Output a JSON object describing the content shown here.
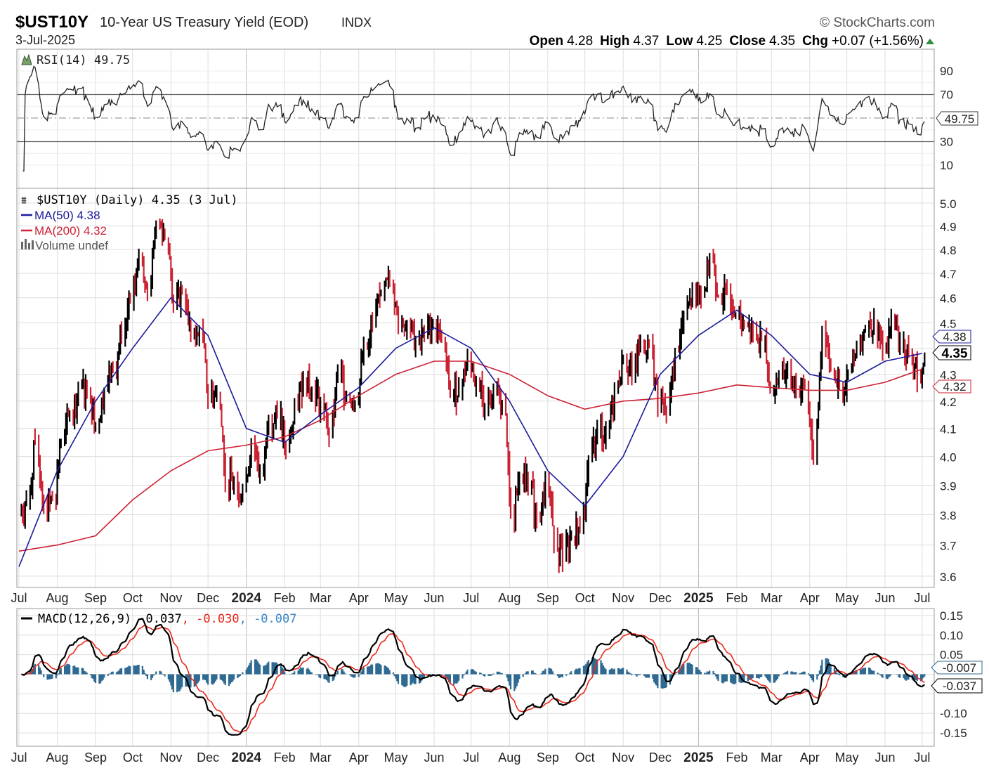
{
  "header": {
    "symbol": "$UST10Y",
    "name": "10-Year US Treasury Yield (EOD)",
    "exchange": "INDX",
    "date": "3-Jul-2025",
    "copyright": "© StockCharts.com",
    "open_label": "Open",
    "open": "4.28",
    "high_label": "High",
    "high": "4.37",
    "low_label": "Low",
    "low": "4.25",
    "close_label": "Close",
    "close": "4.35",
    "chg_label": "Chg",
    "chg": "+0.07 (+1.56%)",
    "up_color": "#2e8b3a"
  },
  "rsi_panel": {
    "legend": "RSI(14) 49.75",
    "value_box": "49.75",
    "ticks": [
      "90",
      "70",
      "30",
      "10"
    ]
  },
  "price_panel": {
    "legend": "$UST10Y (Daily) 4.35 (3 Jul)",
    "ma50_legend": "MA(50) 4.38",
    "ma200_legend": "MA(200) 4.32",
    "volume_legend": "Volume undef",
    "ma50_box": "4.38",
    "close_box": "4.35",
    "ma200_box": "4.32",
    "ticks": [
      "5.0",
      "4.9",
      "4.8",
      "4.7",
      "4.6",
      "4.5",
      "4.3",
      "4.2",
      "4.1",
      "4.0",
      "3.9",
      "3.8",
      "3.7",
      "3.6"
    ]
  },
  "macd_panel": {
    "legend_main": "MACD(12,26,9) -0.037",
    "legend_signal": ", -0.030",
    "legend_hist": ", -0.007",
    "hist_box": "-0.007",
    "macd_box": "-0.037",
    "ticks": [
      "0.15",
      "0.10",
      "0.05",
      "-0.10",
      "-0.15"
    ]
  },
  "x_labels": [
    "Jul",
    "Aug",
    "Sep",
    "Oct",
    "Nov",
    "Dec",
    "2024",
    "Feb",
    "Mar",
    "Apr",
    "May",
    "Jun",
    "Jul",
    "Aug",
    "Sep",
    "Oct",
    "Nov",
    "Dec",
    "2025",
    "Feb",
    "Mar",
    "Apr",
    "May",
    "Jun",
    "Jul"
  ],
  "colors": {
    "up": "#000000",
    "down": "#cc2233",
    "ma50": "#1a1a99",
    "ma200": "#cc2233",
    "macd": "#000000",
    "signal": "#e8291c",
    "hist": "#2f6a92",
    "grid": "#dddddd"
  },
  "chart_data": {
    "type": "line",
    "price_scale": "log",
    "ylim": [
      3.6,
      5.0
    ],
    "rsi_ylim": [
      0,
      100
    ],
    "macd_ylim": [
      -0.15,
      0.15
    ],
    "grid": true,
    "first_week": "2023-07-03",
    "weekly_close": [
      3.85,
      4.05,
      3.82,
      3.85,
      4.05,
      4.15,
      4.25,
      4.25,
      4.12,
      4.25,
      4.32,
      4.45,
      4.58,
      4.78,
      4.62,
      4.92,
      4.85,
      4.57,
      4.63,
      4.44,
      4.47,
      4.22,
      4.23,
      3.92,
      3.9,
      3.88,
      4.05,
      3.95,
      4.13,
      4.14,
      4.03,
      4.18,
      4.28,
      4.25,
      4.19,
      4.08,
      4.31,
      4.22,
      4.2,
      4.4,
      4.5,
      4.62,
      4.67,
      4.5,
      4.5,
      4.42,
      4.47,
      4.5,
      4.43,
      4.22,
      4.25,
      4.36,
      4.28,
      4.19,
      4.24,
      4.2,
      3.79,
      3.94,
      3.89,
      3.8,
      3.9,
      3.72,
      3.65,
      3.73,
      3.75,
      3.98,
      4.1,
      4.08,
      4.24,
      4.37,
      4.3,
      4.43,
      4.41,
      4.18,
      4.15,
      4.4,
      4.52,
      4.62,
      4.6,
      4.77,
      4.61,
      4.62,
      4.54,
      4.49,
      4.47,
      4.43,
      4.23,
      4.31,
      4.31,
      4.25,
      4.25,
      4.0,
      4.48,
      4.32,
      4.24,
      4.31,
      4.38,
      4.48,
      4.51,
      4.4,
      4.51,
      4.42,
      4.38,
      4.28,
      4.35
    ],
    "ma50_monthly": [
      3.63,
      3.95,
      4.2,
      4.4,
      4.6,
      4.45,
      4.1,
      4.05,
      4.15,
      4.25,
      4.4,
      4.48,
      4.4,
      4.2,
      3.95,
      3.83,
      4.0,
      4.3,
      4.45,
      4.55,
      4.45,
      4.3,
      4.27,
      4.35,
      4.38
    ],
    "ma200_monthly": [
      3.68,
      3.7,
      3.73,
      3.85,
      3.95,
      4.02,
      4.04,
      4.07,
      4.13,
      4.22,
      4.3,
      4.35,
      4.35,
      4.3,
      4.22,
      4.17,
      4.2,
      4.21,
      4.23,
      4.26,
      4.25,
      4.24,
      4.24,
      4.27,
      4.32
    ],
    "rsi_last": 49.75,
    "macd_last": -0.037,
    "signal_last": -0.03,
    "hist_last": -0.007
  }
}
